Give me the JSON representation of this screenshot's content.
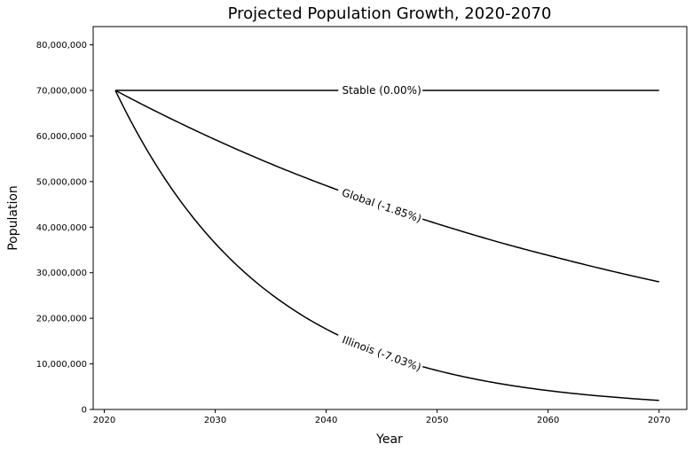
{
  "chart_data": {
    "type": "line",
    "title": "Projected Population Growth, 2020-2070",
    "xlabel": "Year",
    "ylabel": "Population",
    "xlim": [
      2019,
      2072.5
    ],
    "ylim": [
      0,
      84000000
    ],
    "x_ticks": [
      2020,
      2030,
      2040,
      2050,
      2060,
      2070
    ],
    "y_ticks": [
      0,
      10000000,
      20000000,
      30000000,
      40000000,
      50000000,
      60000000,
      70000000,
      80000000
    ],
    "x_tick_labels": [
      "2020",
      "2030",
      "2040",
      "2050",
      "2060",
      "2070"
    ],
    "y_tick_labels": [
      "0",
      "10,000,000",
      "20,000,000",
      "30,000,000",
      "40,000,000",
      "50,000,000",
      "60,000,000",
      "70,000,000",
      "80,000,000"
    ],
    "grid": false,
    "legend": "none",
    "series": [
      {
        "name": "Stable (0.00%)",
        "x": [
          2021,
          2026,
          2031,
          2036,
          2041,
          2046,
          2051,
          2056,
          2061,
          2066,
          2070
        ],
        "values": [
          70000000,
          70000000,
          70000000,
          70000000,
          70000000,
          70000000,
          70000000,
          70000000,
          70000000,
          70000000,
          70000000
        ]
      },
      {
        "name": "Global (-1.85%)",
        "x": [
          2021,
          2026,
          2031,
          2036,
          2041,
          2046,
          2051,
          2056,
          2061,
          2066,
          2070
        ],
        "values": [
          70000000,
          63800000,
          58100000,
          52900000,
          48200000,
          43900000,
          40000000,
          36400000,
          33200000,
          30200000,
          28000000
        ]
      },
      {
        "name": "Illinois (-7.03%)",
        "x": [
          2021,
          2026,
          2031,
          2036,
          2041,
          2046,
          2051,
          2056,
          2061,
          2066,
          2070
        ],
        "values": [
          70000000,
          48700000,
          33900000,
          23600000,
          16400000,
          11400000,
          7950000,
          5530000,
          3850000,
          2680000,
          1990000
        ]
      }
    ],
    "annotations": [
      {
        "text": "Stable (0.00%)",
        "series": 0,
        "x": 2045
      },
      {
        "text": "Global (-1.85%)",
        "series": 1,
        "x": 2045
      },
      {
        "text": "Illinois (-7.03%)",
        "series": 2,
        "x": 2045
      }
    ]
  }
}
